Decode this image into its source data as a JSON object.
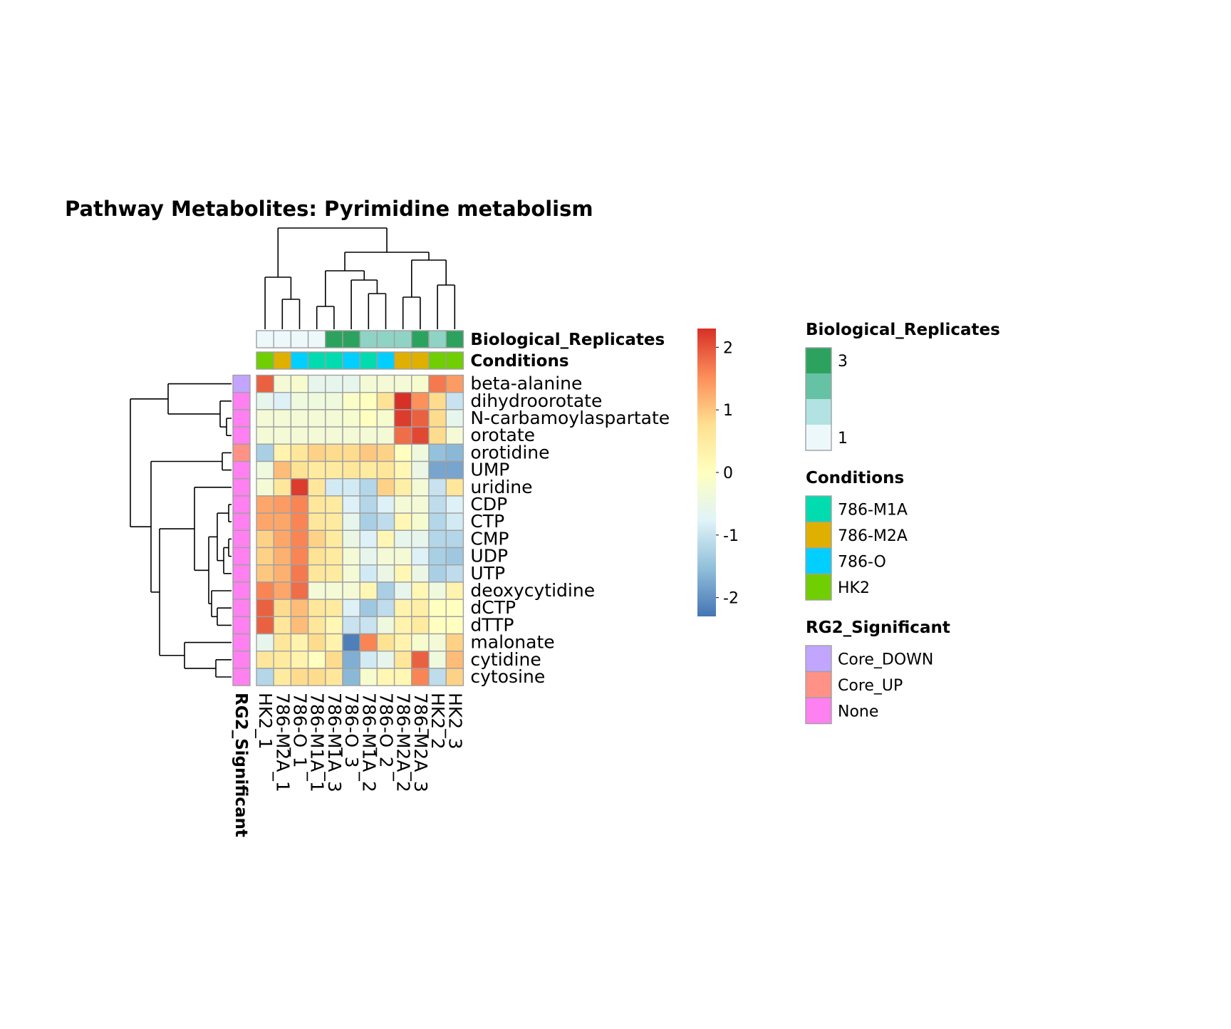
{
  "chart_data": {
    "type": "heatmap",
    "title": "Pathway  Metabolites:  Pyrimidine metabolism",
    "columns": [
      "HK2_1",
      "786-M2A_1",
      "786-O_1",
      "786-M1A_1",
      "786-M1A_3",
      "786-O_3",
      "786-M1A_2",
      "786-O_2",
      "786-M2A_2",
      "786-M2A_3",
      "HK2_2",
      "HK2_3"
    ],
    "rows": [
      "beta-alanine",
      "dihydroorotate",
      "N-carbamoylaspartate",
      "orotate",
      "orotidine",
      "UMP",
      "uridine",
      "CDP",
      "CTP",
      "CMP",
      "UDP",
      "UTP",
      "deoxycytidine",
      "dCTP",
      "dTTP",
      "malonate",
      "cytidine",
      "cytosine"
    ],
    "values": [
      [
        1.9,
        -0.3,
        -0.2,
        -0.6,
        -0.6,
        -0.6,
        -0.3,
        -0.3,
        -0.3,
        -0.2,
        1.7,
        1.4
      ],
      [
        -0.6,
        -0.8,
        -0.4,
        -0.4,
        -0.4,
        -0.1,
        0.0,
        0.7,
        2.3,
        1.5,
        0.8,
        -1.0
      ],
      [
        -0.3,
        -0.3,
        -0.3,
        -0.3,
        -0.3,
        -0.2,
        0.0,
        -0.2,
        2.2,
        1.9,
        0.8,
        -0.6
      ],
      [
        -0.3,
        -0.3,
        -0.3,
        -0.3,
        -0.3,
        -0.3,
        -0.3,
        -0.3,
        1.8,
        2.1,
        0.8,
        -0.3
      ],
      [
        -1.3,
        0.3,
        0.6,
        0.9,
        0.8,
        0.8,
        1.0,
        0.9,
        0.0,
        -0.4,
        -1.5,
        -1.6
      ],
      [
        -0.4,
        1.1,
        0.7,
        0.5,
        0.5,
        0.6,
        0.5,
        0.6,
        0.2,
        -0.5,
        -1.8,
        -1.8
      ],
      [
        -0.3,
        0.6,
        2.2,
        0.6,
        -0.9,
        -0.9,
        -1.2,
        0.9,
        0.4,
        -0.3,
        -1.0,
        0.6
      ],
      [
        1.3,
        1.4,
        1.6,
        0.6,
        0.5,
        -0.8,
        -1.2,
        -0.8,
        -0.3,
        -0.3,
        -1.1,
        -0.8
      ],
      [
        1.3,
        1.3,
        1.6,
        0.6,
        0.5,
        -0.6,
        -1.3,
        -1.1,
        0.2,
        -0.2,
        -1.2,
        -0.9
      ],
      [
        0.9,
        1.3,
        1.6,
        0.9,
        0.5,
        -0.5,
        -0.8,
        0.2,
        -0.6,
        -0.6,
        -1.2,
        -1.2
      ],
      [
        0.9,
        1.2,
        1.6,
        0.7,
        0.5,
        -0.3,
        -0.6,
        -0.3,
        -0.3,
        -0.8,
        -1.3,
        -1.4
      ],
      [
        1.0,
        1.2,
        1.7,
        0.6,
        0.5,
        -0.3,
        -0.9,
        -0.5,
        0.2,
        -0.5,
        -1.3,
        -1.1
      ],
      [
        1.6,
        1.3,
        1.8,
        -0.3,
        -0.3,
        -0.3,
        0.2,
        -1.3,
        -0.6,
        0.2,
        -0.4,
        0.3
      ],
      [
        1.9,
        0.8,
        1.1,
        0.6,
        0.5,
        -0.8,
        -1.4,
        -1.1,
        0.3,
        0.4,
        0.0,
        0.0
      ],
      [
        1.9,
        0.6,
        1.1,
        0.6,
        0.2,
        -1.0,
        -1.0,
        -0.4,
        0.3,
        0.5,
        0.0,
        0.0
      ],
      [
        -0.6,
        0.6,
        0.3,
        0.8,
        0.3,
        -2.2,
        1.6,
        0.7,
        0.3,
        -0.2,
        -0.3,
        0.9
      ],
      [
        0.6,
        0.5,
        0.3,
        0.0,
        0.8,
        -1.7,
        -0.9,
        -0.6,
        0.6,
        1.9,
        -0.4,
        1.1
      ],
      [
        -1.2,
        0.5,
        0.8,
        0.8,
        0.6,
        -1.6,
        -0.2,
        0.2,
        0.2,
        1.6,
        -1.1,
        0.9
      ]
    ],
    "col_annotations": {
      "Biological_Replicates": [
        1,
        1,
        1,
        1,
        3,
        3,
        2,
        2,
        2,
        3,
        2,
        3
      ],
      "Conditions": [
        "HK2",
        "786-M2A",
        "786-O",
        "786-M1A",
        "786-M1A",
        "786-O",
        "786-M1A",
        "786-O",
        "786-M2A",
        "786-M2A",
        "HK2",
        "HK2"
      ]
    },
    "row_annotation": {
      "RG2_Significant": [
        "Core_DOWN",
        "None",
        "None",
        "None",
        "Core_UP",
        "None",
        "None",
        "None",
        "None",
        "None",
        "None",
        "None",
        "None",
        "None",
        "None",
        "None",
        "None",
        "None"
      ]
    },
    "row_annotation_label": "RG2_Significant",
    "col_annotation_labels": [
      "Biological_Replicates",
      "Conditions"
    ],
    "scale": {
      "min": -2.3,
      "max": 2.3,
      "ticks": [
        2,
        1,
        0,
        -1,
        -2
      ],
      "colors": [
        "#4575b4",
        "#91bfdb",
        "#e0f3f8",
        "#ffffbf",
        "#fee090",
        "#fc8d59",
        "#d73027"
      ]
    },
    "legends": [
      {
        "title": "Biological_Replicates",
        "items": [
          {
            "label": "3",
            "color": "#2ca25f"
          },
          {
            "label": "",
            "color": "#66c2a4"
          },
          {
            "label": "",
            "color": "#b2e2e2"
          },
          {
            "label": "1",
            "color": "#edf8fb"
          }
        ]
      },
      {
        "title": "Conditions",
        "items": [
          {
            "label": "786-M1A",
            "color": "#00dcb0"
          },
          {
            "label": "786-M2A",
            "color": "#e0b000"
          },
          {
            "label": "786-O",
            "color": "#00cfff"
          },
          {
            "label": "HK2",
            "color": "#6fcf00"
          }
        ]
      },
      {
        "title": "RG2_Significant",
        "items": [
          {
            "label": "Core_DOWN",
            "color": "#c2a5ff"
          },
          {
            "label": "Core_UP",
            "color": "#ff9186"
          },
          {
            "label": "None",
            "color": "#ff80f0"
          }
        ]
      }
    ],
    "condition_colors": {
      "786-M1A": "#00dcb0",
      "786-M2A": "#e0b000",
      "786-O": "#00cfff",
      "HK2": "#6fcf00"
    },
    "replicate_colors": {
      "1": "#edf8fb",
      "2": "#8fd3c4",
      "3": "#2ca25f"
    },
    "significance_colors": {
      "Core_DOWN": "#c2a5ff",
      "Core_UP": "#ff9186",
      "None": "#ff80f0"
    }
  }
}
